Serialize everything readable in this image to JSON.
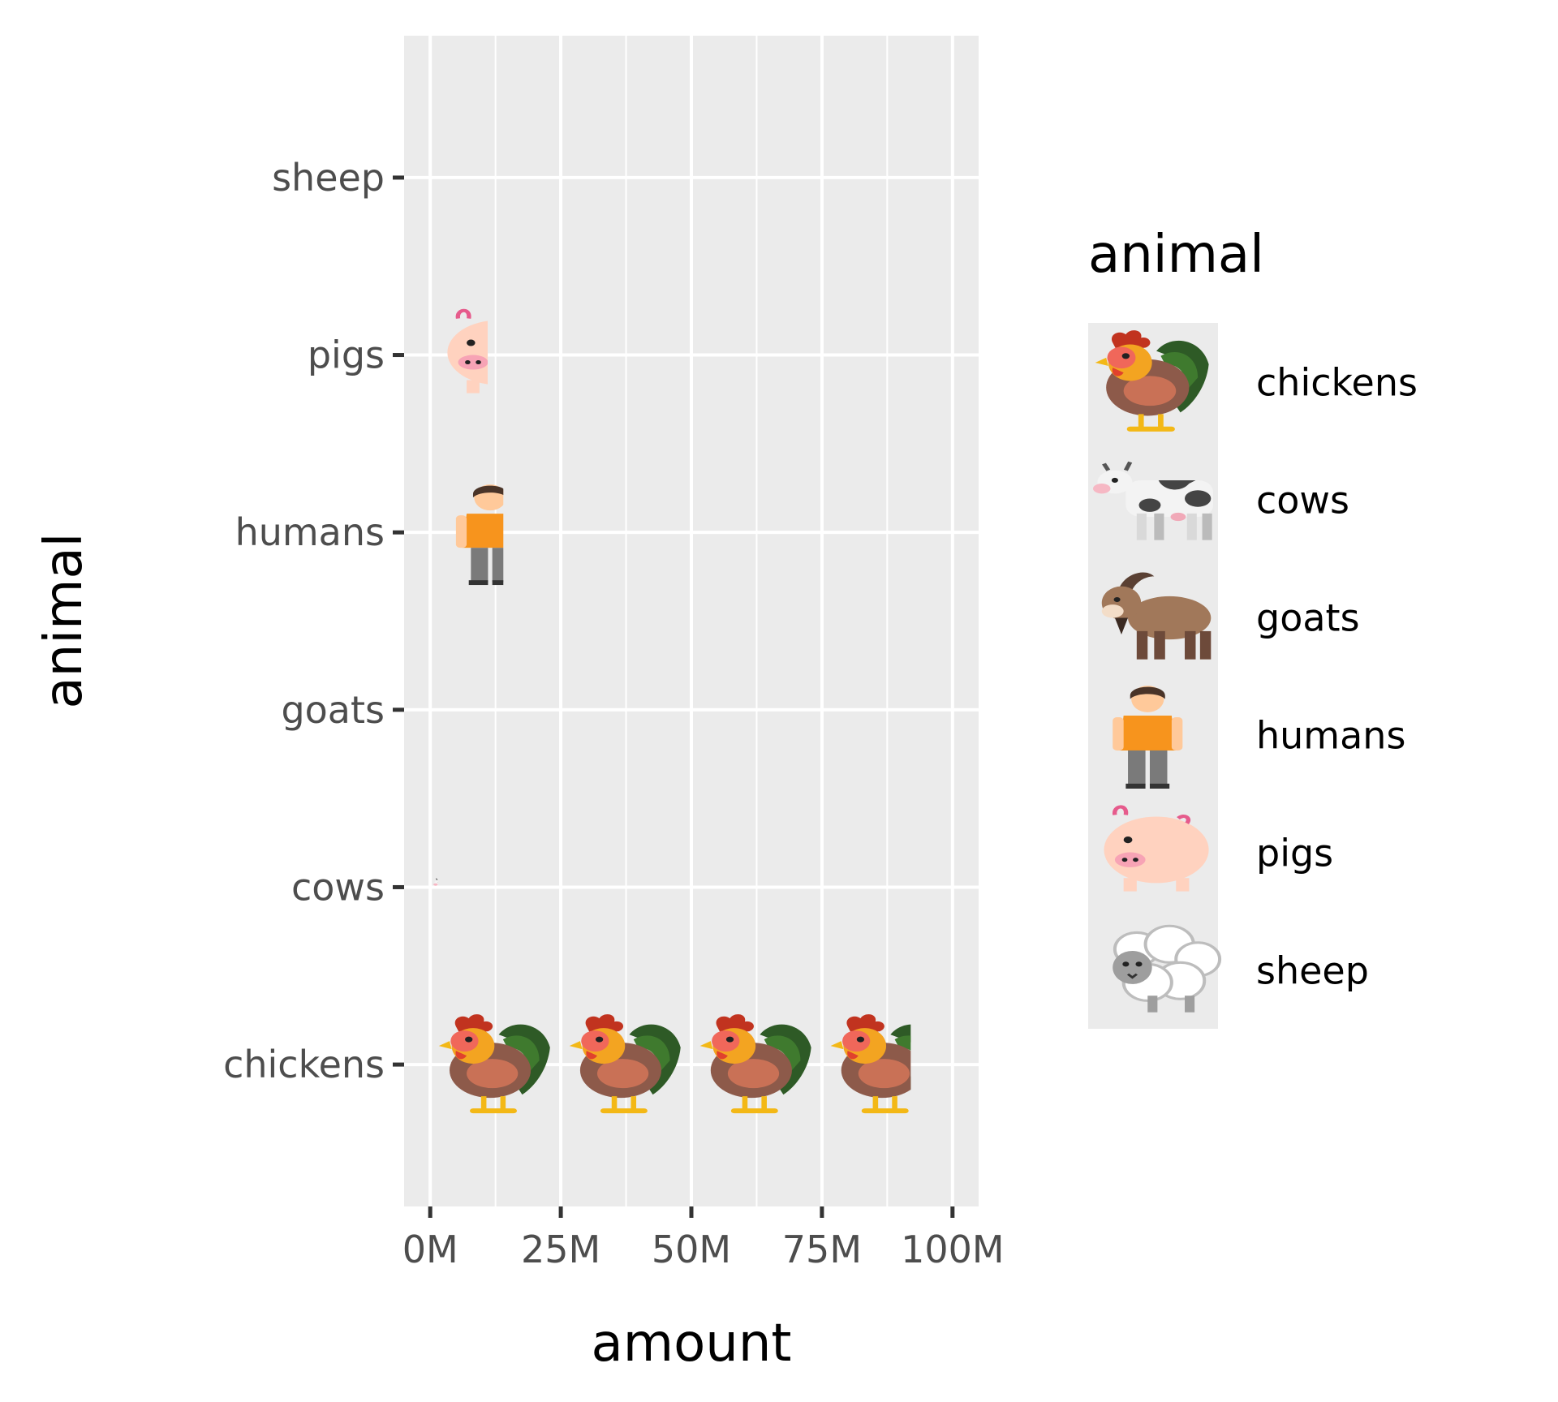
{
  "chart_data": {
    "type": "pictogram-bar",
    "orientation": "horizontal",
    "categories": [
      "chickens",
      "cows",
      "goats",
      "humans",
      "pigs",
      "sheep"
    ],
    "values": [
      92,
      1.5,
      0.5,
      14,
      11,
      0
    ],
    "unit_per_icon": 25,
    "xlabel": "amount",
    "ylabel": "animal",
    "xticks": [
      "0M",
      "25M",
      "50M",
      "75M",
      "100M"
    ],
    "xtick_values": [
      0,
      25,
      50,
      75,
      100
    ],
    "xlim": [
      -5,
      105
    ],
    "grid": true,
    "legend": {
      "title": "animal",
      "position": "right",
      "entries": [
        "chickens",
        "cows",
        "goats",
        "humans",
        "pigs",
        "sheep"
      ]
    },
    "icons": {
      "chickens": "rooster-icon",
      "cows": "cow-icon",
      "goats": "goat-icon",
      "humans": "person-icon",
      "pigs": "pig-icon",
      "sheep": "sheep-icon"
    },
    "colors": {
      "panel_background": "#ebebeb",
      "grid_line": "#ffffff",
      "tick_text": "#4d4d4d",
      "tick_mark": "#333333"
    }
  }
}
